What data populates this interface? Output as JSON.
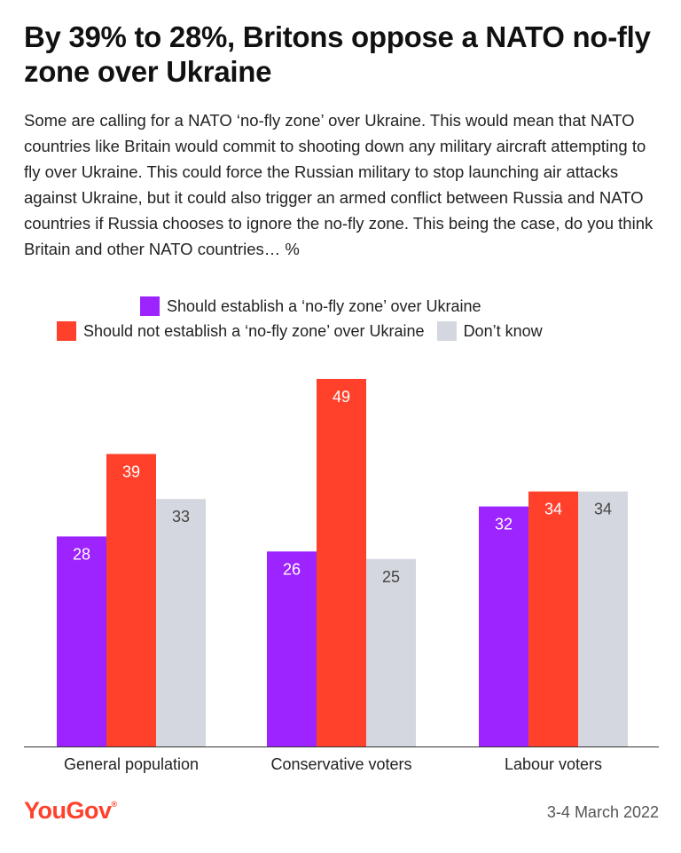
{
  "title": "By 39% to 28%, Britons oppose a NATO no-fly zone over Ukraine",
  "subtitle": "Some are calling for a NATO ‘no-fly zone’ over Ukraine. This would mean that NATO countries like Britain would commit to shooting down any military aircraft attempting to fly over Ukraine. This could force the Russian military to stop launching air attacks against Ukraine, but it could also trigger an armed conflict between Russia and NATO countries if Russia chooses to ignore the no-fly zone. This being the case, do you think Britain and other NATO countries… %",
  "chart_data": {
    "type": "bar",
    "categories": [
      "General population",
      "Conservative voters",
      "Labour voters"
    ],
    "series": [
      {
        "name": "Should establish a ‘no-fly zone’ over Ukraine",
        "values": [
          28,
          26,
          32
        ],
        "color": "#9d23ff"
      },
      {
        "name": "Should not establish a ‘no-fly zone’ over Ukraine",
        "values": [
          39,
          49,
          34
        ],
        "color": "#ff412c"
      },
      {
        "name": "Don’t know",
        "values": [
          33,
          25,
          34
        ],
        "color": "#d4d7e0"
      }
    ],
    "ylim": [
      0,
      49
    ],
    "grid": false,
    "legend_position": "top"
  },
  "footer": {
    "logo": "YouGov",
    "date": "3-4 March 2022"
  }
}
